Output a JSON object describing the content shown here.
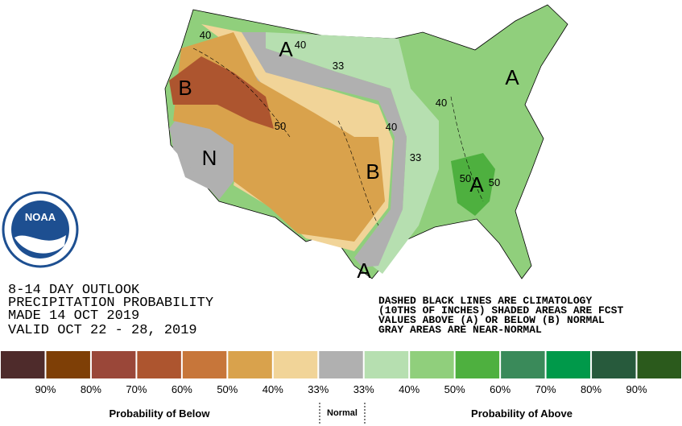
{
  "header": {
    "lines": [
      "8-14 DAY OUTLOOK",
      "PRECIPITATION PROBABILITY",
      "MADE  14 OCT 2019",
      "VALID  OCT 22 - 28, 2019"
    ]
  },
  "notes": [
    "DASHED BLACK LINES ARE CLIMATOLOGY",
    "(10THS OF INCHES) SHADED AREAS ARE FCST",
    "VALUES ABOVE (A) OR BELOW (B) NORMAL",
    "GRAY AREAS ARE NEAR-NORMAL"
  ],
  "logo": "NOAA",
  "map_labels": [
    "A",
    "40",
    "33",
    "B",
    "40",
    "50",
    "N",
    "40",
    "B",
    "33",
    "40",
    "A",
    "50",
    "A",
    "50",
    "A"
  ],
  "legend": {
    "colors": [
      "#4e2b2b",
      "#7e3f06",
      "#9a4739",
      "#ad552f",
      "#c7763a",
      "#d9a24c",
      "#f1d498",
      "#b0b0b0",
      "#b6dfb0",
      "#90cf7c",
      "#4eb03f",
      "#3a8a5a",
      "#00994a",
      "#275a3c",
      "#2b5a1c"
    ],
    "labels": [
      "90%",
      "80%",
      "70%",
      "60%",
      "50%",
      "40%",
      "33%",
      "33%",
      "40%",
      "50%",
      "60%",
      "70%",
      "80%",
      "90%"
    ],
    "below": "Probability of Below",
    "normal": "Normal",
    "above": "Probability of Above"
  }
}
